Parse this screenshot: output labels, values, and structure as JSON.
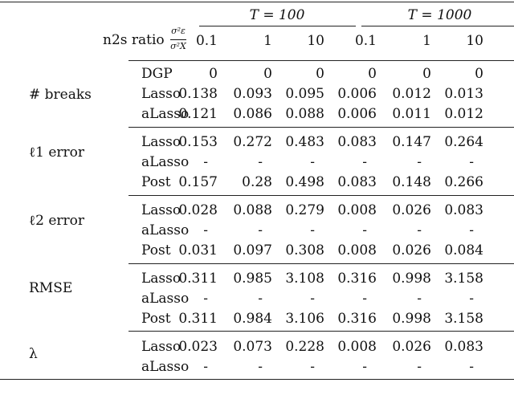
{
  "header": {
    "t100": "T = 100",
    "t1000": "T = 1000",
    "ratio_label": "n2s ratio",
    "frac_num": "σ²ε",
    "frac_den": "σ²X",
    "cols": [
      "0.1",
      "1",
      "10",
      "0.1",
      "1",
      "10"
    ]
  },
  "groups": [
    {
      "label": "# breaks",
      "rows": [
        {
          "method": "DGP",
          "values": [
            "0",
            "0",
            "0",
            "0",
            "0",
            "0"
          ]
        },
        {
          "method": "Lasso",
          "values": [
            "0.138",
            "0.093",
            "0.095",
            "0.006",
            "0.012",
            "0.013"
          ]
        },
        {
          "method": "aLasso",
          "values": [
            "0.121",
            "0.086",
            "0.088",
            "0.006",
            "0.011",
            "0.012"
          ]
        }
      ]
    },
    {
      "label": "ℓ1 error",
      "rows": [
        {
          "method": "Lasso",
          "values": [
            "0.153",
            "0.272",
            "0.483",
            "0.083",
            "0.147",
            "0.264"
          ]
        },
        {
          "method": "aLasso",
          "values": [
            "-",
            "-",
            "-",
            "-",
            "-",
            "-"
          ]
        },
        {
          "method": "Post",
          "values": [
            "0.157",
            "0.28",
            "0.498",
            "0.083",
            "0.148",
            "0.266"
          ]
        }
      ]
    },
    {
      "label": "ℓ2 error",
      "rows": [
        {
          "method": "Lasso",
          "values": [
            "0.028",
            "0.088",
            "0.279",
            "0.008",
            "0.026",
            "0.083"
          ]
        },
        {
          "method": "aLasso",
          "values": [
            "-",
            "-",
            "-",
            "-",
            "-",
            "-"
          ]
        },
        {
          "method": "Post",
          "values": [
            "0.031",
            "0.097",
            "0.308",
            "0.008",
            "0.026",
            "0.084"
          ]
        }
      ]
    },
    {
      "label": "RMSE",
      "rows": [
        {
          "method": "Lasso",
          "values": [
            "0.311",
            "0.985",
            "3.108",
            "0.316",
            "0.998",
            "3.158"
          ]
        },
        {
          "method": "aLasso",
          "values": [
            "-",
            "-",
            "-",
            "-",
            "-",
            "-"
          ]
        },
        {
          "method": "Post",
          "values": [
            "0.311",
            "0.984",
            "3.106",
            "0.316",
            "0.998",
            "3.158"
          ]
        }
      ]
    },
    {
      "label": "λ",
      "rows": [
        {
          "method": "Lasso",
          "values": [
            "0.023",
            "0.073",
            "0.228",
            "0.008",
            "0.026",
            "0.083"
          ]
        },
        {
          "method": "aLasso",
          "values": [
            "-",
            "-",
            "-",
            "-",
            "-",
            "-"
          ]
        }
      ]
    }
  ]
}
